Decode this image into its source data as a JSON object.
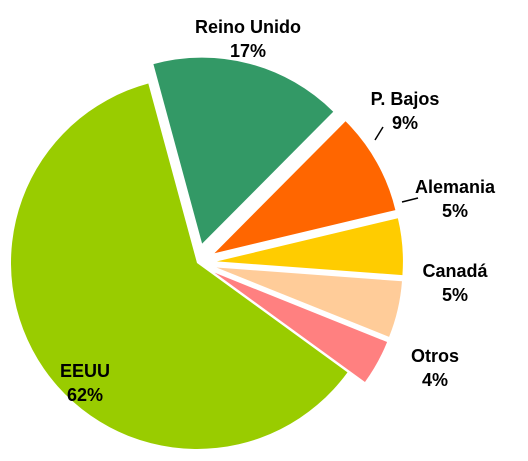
{
  "chart_data": {
    "type": "pie",
    "categories": [
      "EEUU",
      "Reino Unido",
      "P. Bajos",
      "Alemania",
      "Canadá",
      "Otros"
    ],
    "values": [
      62,
      17,
      9,
      5,
      5,
      4
    ],
    "value_labels": [
      "62%",
      "17%",
      "9%",
      "5%",
      "5%",
      "4%"
    ],
    "colors": [
      "#99cc00",
      "#339966",
      "#ff6600",
      "#ffcc00",
      "#ffcc99",
      "#ff8080"
    ]
  }
}
